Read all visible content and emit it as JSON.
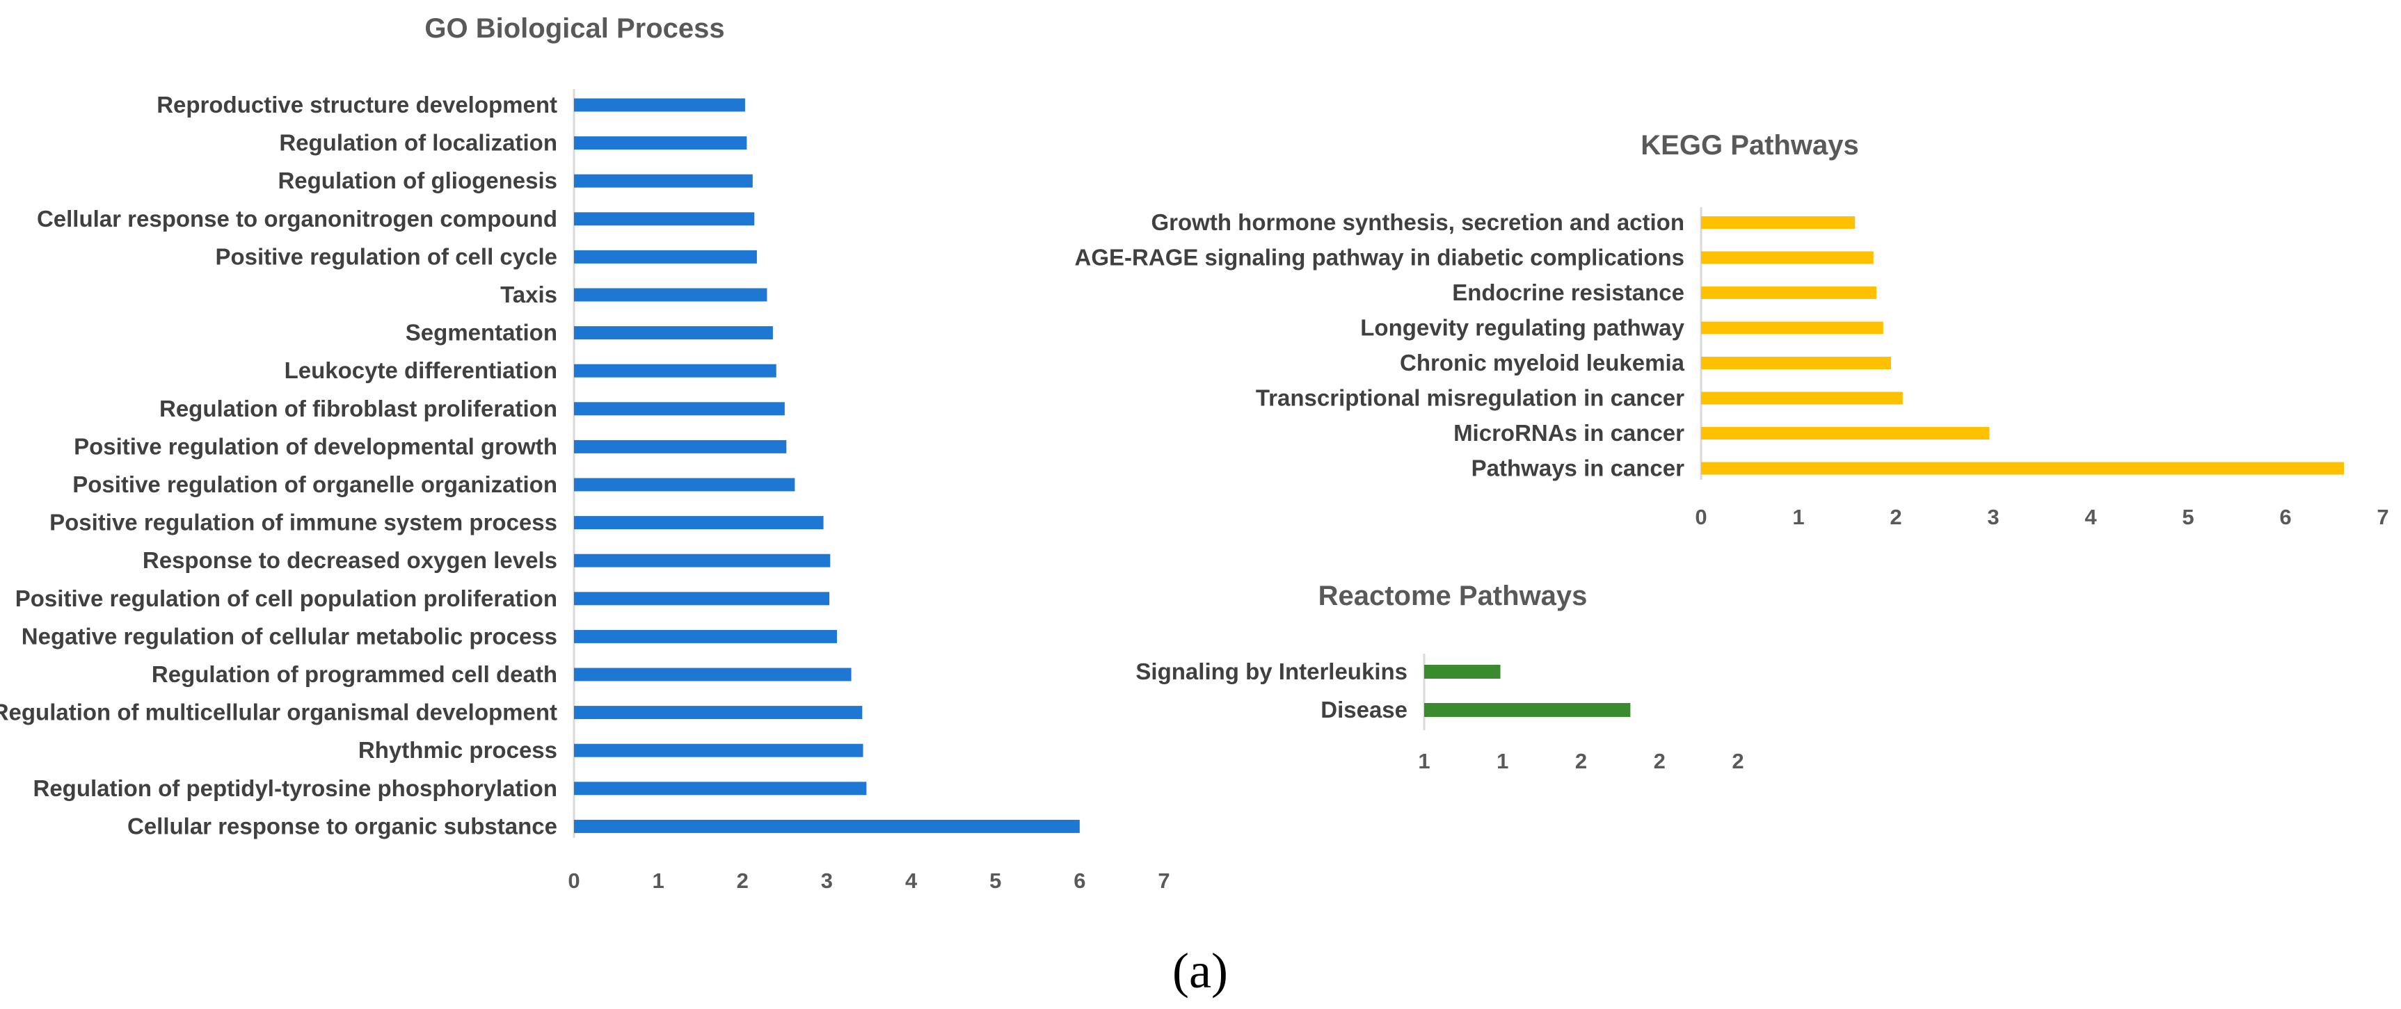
{
  "caption": "(a)",
  "chart_data": [
    {
      "type": "bar",
      "orientation": "horizontal",
      "title": "GO Biological Process",
      "color": "#1f77d4",
      "categories": [
        "Reproductive structure development",
        "Regulation of localization",
        "Regulation of gliogenesis",
        "Cellular response to organonitrogen compound",
        "Positive regulation of cell cycle",
        "Taxis",
        "Segmentation",
        "Leukocyte differentiation",
        "Regulation of fibroblast proliferation",
        "Positive regulation of developmental growth",
        "Positive regulation of organelle organization",
        "Positive regulation of immune system process",
        "Response to decreased oxygen levels",
        "Positive regulation of cell population proliferation",
        "Negative regulation of cellular metabolic process",
        "Regulation of programmed cell death",
        "Regulation of multicellular organismal development",
        "Rhythmic process",
        "Regulation of peptidyl-tyrosine phosphorylation",
        "Cellular response to organic substance"
      ],
      "values": [
        2.03,
        2.05,
        2.12,
        2.14,
        2.17,
        2.29,
        2.36,
        2.4,
        2.5,
        2.52,
        2.62,
        2.96,
        3.04,
        3.03,
        3.12,
        3.29,
        3.42,
        3.43,
        3.47,
        6.0
      ],
      "xlim": [
        0,
        7
      ],
      "xticks": [
        "0",
        "1",
        "2",
        "3",
        "4",
        "5",
        "6",
        "7"
      ],
      "xlabel": "",
      "ylabel": ""
    },
    {
      "type": "bar",
      "orientation": "horizontal",
      "title": "KEGG Pathways",
      "color": "#ffc000",
      "categories": [
        "Growth hormone synthesis, secretion and action",
        "AGE-RAGE signaling pathway in diabetic complications",
        "Endocrine resistance",
        "Longevity regulating pathway",
        "Chronic myeloid leukemia",
        "Transcriptional misregulation in cancer",
        "MicroRNAs in cancer",
        "Pathways in cancer"
      ],
      "values": [
        1.58,
        1.77,
        1.8,
        1.87,
        1.95,
        2.07,
        2.96,
        6.6
      ],
      "xlim": [
        0,
        7
      ],
      "xticks": [
        "0",
        "1",
        "2",
        "3",
        "4",
        "5",
        "6",
        "7"
      ],
      "xlabel": "",
      "ylabel": ""
    },
    {
      "type": "bar",
      "orientation": "horizontal",
      "title": "Reactome Pathways",
      "color": "#3a8a2e",
      "categories": [
        "Signaling by Interleukins",
        "Disease"
      ],
      "values": [
        1.34,
        1.92
      ],
      "xlim": [
        1,
        2.4
      ],
      "xticks": [
        "1",
        "1",
        "2",
        "2",
        "2"
      ],
      "xlabel": "",
      "ylabel": ""
    }
  ]
}
